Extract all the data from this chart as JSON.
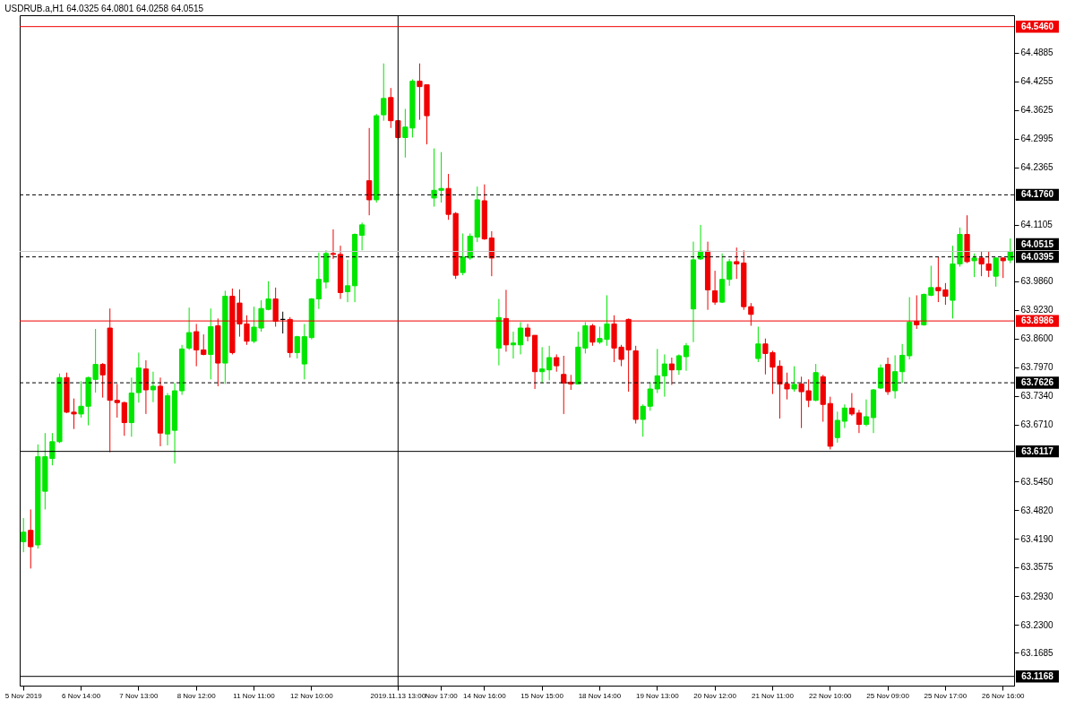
{
  "chart_data": {
    "type": "candlestick",
    "title": "USDRUB.a,H1  64.0325 64.0801 64.0258 64.0515",
    "categories": [
      "5 Nov 2019",
      null,
      null,
      null,
      null,
      null,
      null,
      null,
      "6 Nov 14:00",
      null,
      null,
      null,
      null,
      null,
      null,
      null,
      "7 Nov 13:00",
      null,
      null,
      null,
      null,
      null,
      null,
      null,
      "8 Nov 12:00",
      null,
      null,
      null,
      null,
      null,
      null,
      null,
      "11 Nov 11:00",
      null,
      null,
      null,
      null,
      null,
      null,
      null,
      "12 Nov 10:00",
      null,
      null,
      null,
      null,
      null,
      null,
      null,
      null,
      null,
      null,
      null,
      "2019.11.13 13:00",
      null,
      null,
      null,
      null,
      null,
      "Nov 17:00",
      null,
      null,
      null,
      null,
      null,
      "14 Nov 16:00",
      null,
      null,
      null,
      null,
      null,
      null,
      null,
      "15 Nov 15:00",
      null,
      null,
      null,
      null,
      null,
      null,
      null,
      "18 Nov 14:00",
      null,
      null,
      null,
      null,
      null,
      null,
      null,
      "19 Nov 13:00",
      null,
      null,
      null,
      null,
      null,
      null,
      null,
      "20 Nov 12:00",
      null,
      null,
      null,
      null,
      null,
      null,
      null,
      "21 Nov 11:00",
      null,
      null,
      null,
      null,
      null,
      null,
      null,
      "22 Nov 10:00",
      null,
      null,
      null,
      null,
      null,
      null,
      null,
      "25 Nov 09:00",
      null,
      null,
      null,
      null,
      null,
      null,
      null,
      "25 Nov 17:00",
      null,
      null,
      null,
      null,
      null,
      null,
      null,
      "26 Nov 16:00",
      null
    ],
    "ohlc": [
      [
        63.413,
        63.465,
        63.39,
        63.434
      ],
      [
        63.438,
        63.484,
        63.354,
        63.402
      ],
      [
        63.406,
        63.627,
        63.398,
        63.6
      ],
      [
        63.524,
        63.652,
        63.484,
        63.6
      ],
      [
        63.596,
        63.652,
        63.581,
        63.633
      ],
      [
        63.633,
        63.783,
        63.63,
        63.774
      ],
      [
        63.774,
        63.785,
        63.696,
        63.698
      ],
      [
        63.698,
        63.728,
        63.661,
        63.694
      ],
      [
        63.694,
        63.766,
        63.686,
        63.711
      ],
      [
        63.711,
        63.776,
        63.669,
        63.774
      ],
      [
        63.77,
        63.881,
        63.741,
        63.803
      ],
      [
        63.803,
        63.806,
        63.73,
        63.78
      ],
      [
        63.883,
        63.926,
        63.61,
        63.724
      ],
      [
        63.724,
        63.76,
        63.686,
        63.719
      ],
      [
        63.719,
        63.721,
        63.646,
        63.675
      ],
      [
        63.675,
        63.774,
        63.644,
        63.74
      ],
      [
        63.741,
        63.829,
        63.719,
        63.795
      ],
      [
        63.793,
        63.812,
        63.694,
        63.747
      ],
      [
        63.747,
        63.787,
        63.72,
        63.755
      ],
      [
        63.755,
        63.774,
        63.623,
        63.652
      ],
      [
        63.65,
        63.74,
        63.625,
        63.734
      ],
      [
        63.658,
        63.762,
        63.585,
        63.745
      ],
      [
        63.745,
        63.846,
        63.736,
        63.837
      ],
      [
        63.839,
        63.928,
        63.835,
        63.873
      ],
      [
        63.875,
        63.892,
        63.799,
        63.835
      ],
      [
        63.835,
        63.869,
        63.823,
        63.825
      ],
      [
        63.825,
        63.926,
        63.77,
        63.886
      ],
      [
        63.888,
        63.904,
        63.755,
        63.806
      ],
      [
        63.806,
        63.965,
        63.76,
        63.953
      ],
      [
        63.953,
        63.97,
        63.825,
        63.829
      ],
      [
        63.938,
        63.968,
        63.864,
        63.892
      ],
      [
        63.892,
        63.911,
        63.846,
        63.854
      ],
      [
        63.854,
        63.93,
        63.85,
        63.885
      ],
      [
        63.883,
        63.944,
        63.875,
        63.926
      ],
      [
        63.924,
        63.986,
        63.922,
        63.947
      ],
      [
        63.947,
        63.972,
        63.886,
        63.898
      ],
      [
        63.902,
        63.919,
        63.871,
        63.902
      ],
      [
        63.902,
        63.907,
        63.818,
        63.829
      ],
      [
        63.829,
        63.866,
        63.816,
        63.864
      ],
      [
        63.804,
        63.892,
        63.77,
        63.864
      ],
      [
        63.862,
        63.949,
        63.858,
        63.947
      ],
      [
        63.947,
        64.049,
        63.925,
        63.99
      ],
      [
        63.984,
        64.054,
        63.97,
        64.047
      ],
      [
        64.047,
        64.1,
        64.035,
        64.045
      ],
      [
        64.045,
        64.064,
        63.947,
        63.961
      ],
      [
        63.963,
        64.033,
        63.94,
        63.976
      ],
      [
        63.976,
        64.091,
        63.94,
        64.089
      ],
      [
        64.087,
        64.115,
        64.054,
        64.11
      ],
      [
        64.207,
        64.323,
        64.131,
        64.165
      ],
      [
        64.165,
        64.354,
        64.159,
        64.35
      ],
      [
        64.352,
        64.465,
        64.339,
        64.388
      ],
      [
        64.39,
        64.411,
        64.323,
        64.339
      ],
      [
        64.339,
        64.339,
        64.298,
        64.302
      ],
      [
        64.302,
        64.365,
        64.258,
        64.325
      ],
      [
        64.323,
        64.43,
        64.302,
        64.426
      ],
      [
        64.426,
        64.465,
        64.341,
        64.414
      ],
      [
        64.418,
        64.418,
        64.287,
        64.35
      ],
      [
        64.169,
        64.278,
        64.15,
        64.186
      ],
      [
        64.186,
        64.27,
        64.159,
        64.19
      ],
      [
        64.19,
        64.222,
        64.121,
        64.133
      ],
      [
        64.135,
        64.138,
        63.991,
        63.999
      ],
      [
        64.005,
        64.091,
        63.999,
        64.039
      ],
      [
        64.037,
        64.091,
        64.033,
        64.085
      ],
      [
        64.083,
        64.194,
        64.072,
        64.165
      ],
      [
        64.163,
        64.199,
        64.077,
        64.079
      ],
      [
        64.081,
        64.096,
        63.997,
        64.037
      ],
      [
        63.839,
        63.947,
        63.801,
        63.906
      ],
      [
        63.904,
        63.967,
        63.831,
        63.846
      ],
      [
        63.846,
        63.875,
        63.816,
        63.85
      ],
      [
        63.846,
        63.896,
        63.825,
        63.883
      ],
      [
        63.883,
        63.892,
        63.854,
        63.865
      ],
      [
        63.867,
        63.867,
        63.749,
        63.787
      ],
      [
        63.787,
        63.841,
        63.762,
        63.793
      ],
      [
        63.791,
        63.844,
        63.768,
        63.818
      ],
      [
        63.818,
        63.825,
        63.787,
        63.8
      ],
      [
        63.781,
        63.822,
        63.694,
        63.762
      ],
      [
        63.764,
        63.78,
        63.747,
        63.76
      ],
      [
        63.76,
        63.875,
        63.759,
        63.841
      ],
      [
        63.839,
        63.896,
        63.827,
        63.888
      ],
      [
        63.888,
        63.892,
        63.844,
        63.852
      ],
      [
        63.852,
        63.886,
        63.848,
        63.86
      ],
      [
        63.858,
        63.955,
        63.844,
        63.892
      ],
      [
        63.892,
        63.911,
        63.808,
        63.839
      ],
      [
        63.841,
        63.846,
        63.799,
        63.814
      ],
      [
        63.902,
        63.904,
        63.743,
        63.835
      ],
      [
        63.833,
        63.844,
        63.673,
        63.682
      ],
      [
        63.682,
        63.715,
        63.644,
        63.711
      ],
      [
        63.711,
        63.764,
        63.701,
        63.749
      ],
      [
        63.749,
        63.837,
        63.74,
        63.778
      ],
      [
        63.778,
        63.825,
        63.732,
        63.804
      ],
      [
        63.804,
        63.818,
        63.758,
        63.791
      ],
      [
        63.791,
        63.825,
        63.78,
        63.822
      ],
      [
        63.82,
        63.85,
        63.789,
        63.844
      ],
      [
        63.925,
        64.073,
        63.852,
        64.033
      ],
      [
        64.035,
        64.11,
        64.033,
        64.052
      ],
      [
        64.052,
        64.073,
        63.923,
        63.967
      ],
      [
        63.965,
        64.009,
        63.934,
        63.94
      ],
      [
        63.94,
        64.047,
        63.938,
        63.99
      ],
      [
        63.99,
        64.035,
        63.976,
        64.029
      ],
      [
        64.029,
        64.06,
        63.991,
        64.024
      ],
      [
        64.026,
        64.054,
        63.923,
        63.93
      ],
      [
        63.93,
        63.938,
        63.888,
        63.913
      ],
      [
        63.816,
        63.886,
        63.808,
        63.848
      ],
      [
        63.848,
        63.86,
        63.781,
        63.827
      ],
      [
        63.829,
        63.833,
        63.738,
        63.797
      ],
      [
        63.799,
        63.812,
        63.684,
        63.76
      ],
      [
        63.76,
        63.785,
        63.726,
        63.749
      ],
      [
        63.749,
        63.799,
        63.743,
        63.759
      ],
      [
        63.76,
        63.776,
        63.663,
        63.743
      ],
      [
        63.745,
        63.77,
        63.709,
        63.724
      ],
      [
        63.724,
        63.804,
        63.722,
        63.785
      ],
      [
        63.776,
        63.78,
        63.677,
        63.715
      ],
      [
        63.717,
        63.732,
        63.616,
        63.623
      ],
      [
        63.642,
        63.699,
        63.631,
        63.68
      ],
      [
        63.678,
        63.715,
        63.663,
        63.707
      ],
      [
        63.707,
        63.74,
        63.69,
        63.694
      ],
      [
        63.696,
        63.703,
        63.652,
        63.671
      ],
      [
        63.671,
        63.726,
        63.667,
        63.688
      ],
      [
        63.686,
        63.749,
        63.652,
        63.747
      ],
      [
        63.751,
        63.803,
        63.749,
        63.795
      ],
      [
        63.803,
        63.818,
        63.736,
        63.743
      ],
      [
        63.745,
        63.823,
        63.728,
        63.787
      ],
      [
        63.787,
        63.848,
        63.762,
        63.823
      ],
      [
        63.822,
        63.951,
        63.814,
        63.896
      ],
      [
        63.898,
        63.955,
        63.881,
        63.89
      ],
      [
        63.89,
        63.959,
        63.888,
        63.957
      ],
      [
        63.955,
        64.02,
        63.953,
        63.972
      ],
      [
        63.972,
        64.039,
        63.94,
        63.965
      ],
      [
        63.967,
        63.982,
        63.934,
        63.953
      ],
      [
        63.944,
        64.064,
        63.904,
        64.024
      ],
      [
        64.024,
        64.104,
        64.018,
        64.089
      ],
      [
        64.089,
        64.131,
        64.026,
        64.029
      ],
      [
        64.031,
        64.047,
        63.995,
        64.037
      ],
      [
        64.037,
        64.052,
        63.997,
        64.024
      ],
      [
        64.024,
        64.052,
        63.995,
        64.01
      ],
      [
        63.997,
        64.039,
        63.974,
        64.037
      ],
      [
        64.037,
        64.039,
        63.993,
        64.031
      ],
      [
        64.0325,
        64.0801,
        64.0258,
        64.0515
      ]
    ],
    "colors": [
      "#00e600",
      "#f00000",
      "#00e600",
      "#00e600",
      "#00e600",
      "#00e600",
      "#f00000",
      "#f00000",
      "#00e600",
      "#00e600",
      "#00e600",
      "#f00000",
      "#f00000",
      "#f00000",
      "#f00000",
      "#00e600",
      "#00e600",
      "#f00000",
      "#00e600",
      "#f00000",
      "#00e600",
      "#00e600",
      "#00e600",
      "#00e600",
      "#f00000",
      "#f00000",
      "#00e600",
      "#f00000",
      "#00e600",
      "#f00000",
      "#f00000",
      "#f00000",
      "#00e600",
      "#00e600",
      "#00e600",
      "#f00000",
      "#000000",
      "#f00000",
      "#00e600",
      "#00e600",
      "#00e600",
      "#00e600",
      "#00e600",
      "#f00000",
      "#f00000",
      "#00e600",
      "#00e600",
      "#00e600",
      "#f00000",
      "#00e600",
      "#00e600",
      "#f00000",
      "#f00000",
      "#00e600",
      "#00e600",
      "#f00000",
      "#f00000",
      "#00e600",
      "#00e600",
      "#f00000",
      "#f00000",
      "#00e600",
      "#00e600",
      "#00e600",
      "#f00000",
      "#f00000",
      "#00e600",
      "#f00000",
      "#00e600",
      "#00e600",
      "#f00000",
      "#f00000",
      "#00e600",
      "#00e600",
      "#f00000",
      "#f00000",
      "#f00000",
      "#00e600",
      "#00e600",
      "#f00000",
      "#00e600",
      "#00e600",
      "#f00000",
      "#f00000",
      "#f00000",
      "#f00000",
      "#00e600",
      "#00e600",
      "#00e600",
      "#00e600",
      "#f00000",
      "#00e600",
      "#00e600",
      "#00e600",
      "#00e600",
      "#f00000",
      "#f00000",
      "#00e600",
      "#00e600",
      "#f00000",
      "#f00000",
      "#f00000",
      "#00e600",
      "#f00000",
      "#f00000",
      "#f00000",
      "#f00000",
      "#00e600",
      "#f00000",
      "#f00000",
      "#00e600",
      "#f00000",
      "#f00000",
      "#00e600",
      "#00e600",
      "#f00000",
      "#f00000",
      "#00e600",
      "#00e600",
      "#00e600",
      "#f00000",
      "#00e600",
      "#00e600",
      "#00e600",
      "#f00000",
      "#00e600",
      "#00e600",
      "#f00000",
      "#f00000",
      "#00e600",
      "#00e600",
      "#f00000",
      "#00e600",
      "#f00000",
      "#f00000",
      "#00e600",
      "#f00000",
      "#00e600"
    ],
    "ylim": [
      63.0965,
      64.571
    ],
    "yticks": [
      64.4885,
      64.4255,
      64.3625,
      64.2995,
      64.2365,
      64.1105,
      {
        "value": 63.986,
        "label": "63.9860"
      },
      {
        "value": 63.923,
        "label": "63.9230"
      },
      {
        "value": 63.86,
        "label": "63.8600"
      },
      {
        "value": 63.797,
        "label": "63.7970"
      },
      {
        "value": 63.734,
        "label": "63.7340"
      },
      {
        "value": 63.671,
        "label": "63.6710"
      },
      {
        "value": 63.545,
        "label": "63.5450"
      },
      {
        "value": 63.482,
        "label": "63.4820"
      },
      {
        "value": 63.419,
        "label": "63.4190"
      },
      63.3575,
      {
        "value": 63.293,
        "label": "63.2930"
      },
      {
        "value": 63.23,
        "label": "63.2300"
      },
      63.1685
    ],
    "ref_lines": [
      {
        "axis": "x",
        "value": "2019.11.13 13:00",
        "color": "#000000"
      },
      {
        "axis": "y",
        "value": 64.546,
        "label": "64.5460",
        "color": "#f00000"
      },
      {
        "axis": "y",
        "value": 64.176,
        "label": "64.1760",
        "color": "#000000",
        "line_style": "dashed"
      },
      {
        "axis": "y",
        "value": 64.0515,
        "label": "64.0515",
        "color": "#c8c8c8"
      },
      {
        "axis": "y",
        "value": 64.0395,
        "label": "64.0395",
        "color": "#000000",
        "line_style": "dashed"
      },
      {
        "axis": "y",
        "value": 63.8986,
        "label": "63.8986",
        "color": "#f00000"
      },
      {
        "axis": "y",
        "value": 63.7626,
        "label": "63.7626",
        "color": "#000000",
        "line_style": "dashed"
      },
      {
        "axis": "y",
        "value": 63.6117,
        "label": "63.6117",
        "color": "#000000"
      },
      {
        "axis": "y",
        "value": 63.1168,
        "label": "63.1168",
        "color": "#000000"
      }
    ]
  }
}
